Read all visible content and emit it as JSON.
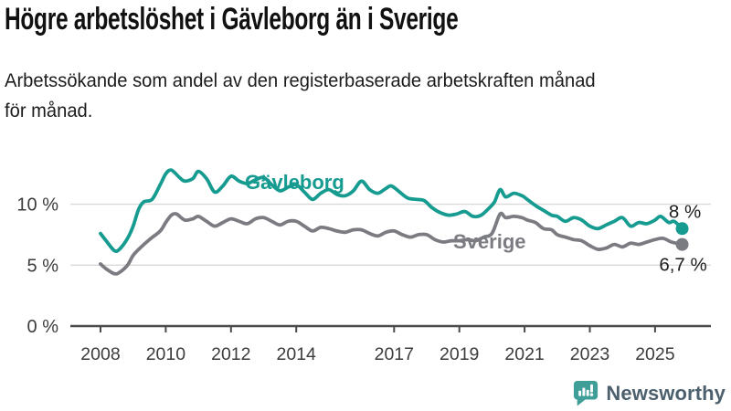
{
  "header": {
    "title": "Högre arbetslöshet i Gävleborg än i Sverige",
    "subtitle": "Arbetssökande som andel av den registerbaserade arbetskraften månad för månad.",
    "subtitle_lines": {
      "line1": "Arbetssökande som andel av den registerbaserade arbetskraften månad",
      "line2": "för månad."
    }
  },
  "chart_data": {
    "type": "line",
    "title": "",
    "xlabel": "",
    "ylabel": "",
    "x_unit": "decimal-year (monthly observations)",
    "y_unit": "percent of registered labour force",
    "xlim": [
      2007.9,
      2026.3
    ],
    "ylim": [
      0,
      13.8
    ],
    "grid": "horizontal",
    "legend_position": "inline-labels-on-lines",
    "yticks": [
      {
        "value": 0,
        "label": "0 %"
      },
      {
        "value": 5,
        "label": "5 %"
      },
      {
        "value": 10,
        "label": "10 %"
      }
    ],
    "xticks": [
      {
        "value": 2008,
        "label": "2008"
      },
      {
        "value": 2010,
        "label": "2010"
      },
      {
        "value": 2012,
        "label": "2012"
      },
      {
        "value": 2014,
        "label": "2014"
      },
      {
        "value": 2017,
        "label": "2017"
      },
      {
        "value": 2019,
        "label": "2019"
      },
      {
        "value": 2021,
        "label": "2021"
      },
      {
        "value": 2023,
        "label": "2023"
      },
      {
        "value": 2025,
        "label": "2025"
      }
    ],
    "series": [
      {
        "name": "Gävleborg",
        "color": "#169b91",
        "end_label": "8 %",
        "last_value": 8.0,
        "points": [
          [
            2008.0,
            7.6
          ],
          [
            2008.17,
            7.0
          ],
          [
            2008.42,
            6.2
          ],
          [
            2008.58,
            6.3
          ],
          [
            2008.83,
            7.2
          ],
          [
            2009.0,
            8.2
          ],
          [
            2009.17,
            9.6
          ],
          [
            2009.33,
            10.2
          ],
          [
            2009.58,
            10.4
          ],
          [
            2009.83,
            11.6
          ],
          [
            2010.0,
            12.5
          ],
          [
            2010.17,
            12.8
          ],
          [
            2010.42,
            12.2
          ],
          [
            2010.58,
            11.9
          ],
          [
            2010.83,
            12.1
          ],
          [
            2011.0,
            12.7
          ],
          [
            2011.25,
            12.1
          ],
          [
            2011.5,
            11.0
          ],
          [
            2011.75,
            11.5
          ],
          [
            2012.0,
            12.3
          ],
          [
            2012.25,
            11.9
          ],
          [
            2012.5,
            11.7
          ],
          [
            2012.75,
            12.0
          ],
          [
            2013.0,
            12.2
          ],
          [
            2013.25,
            11.6
          ],
          [
            2013.5,
            11.1
          ],
          [
            2013.75,
            11.4
          ],
          [
            2014.0,
            11.6
          ],
          [
            2014.25,
            11.0
          ],
          [
            2014.5,
            10.4
          ],
          [
            2014.75,
            10.9
          ],
          [
            2015.0,
            11.2
          ],
          [
            2015.25,
            10.8
          ],
          [
            2015.5,
            10.7
          ],
          [
            2015.75,
            11.1
          ],
          [
            2016.0,
            11.9
          ],
          [
            2016.25,
            11.2
          ],
          [
            2016.5,
            10.9
          ],
          [
            2016.75,
            11.3
          ],
          [
            2016.92,
            11.5
          ],
          [
            2017.17,
            11.0
          ],
          [
            2017.42,
            10.5
          ],
          [
            2017.67,
            10.4
          ],
          [
            2017.92,
            10.3
          ],
          [
            2018.17,
            9.7
          ],
          [
            2018.42,
            9.3
          ],
          [
            2018.67,
            9.1
          ],
          [
            2018.92,
            9.2
          ],
          [
            2019.17,
            9.4
          ],
          [
            2019.42,
            9.0
          ],
          [
            2019.67,
            9.1
          ],
          [
            2019.92,
            9.7
          ],
          [
            2020.08,
            10.2
          ],
          [
            2020.25,
            11.2
          ],
          [
            2020.42,
            10.6
          ],
          [
            2020.67,
            10.9
          ],
          [
            2020.92,
            10.7
          ],
          [
            2021.08,
            10.4
          ],
          [
            2021.33,
            9.9
          ],
          [
            2021.58,
            9.5
          ],
          [
            2021.83,
            9.1
          ],
          [
            2022.0,
            9.0
          ],
          [
            2022.25,
            8.6
          ],
          [
            2022.5,
            8.9
          ],
          [
            2022.75,
            8.7
          ],
          [
            2023.0,
            8.2
          ],
          [
            2023.25,
            8.0
          ],
          [
            2023.5,
            8.3
          ],
          [
            2023.75,
            8.6
          ],
          [
            2024.0,
            8.9
          ],
          [
            2024.25,
            8.2
          ],
          [
            2024.5,
            8.5
          ],
          [
            2024.75,
            8.4
          ],
          [
            2025.0,
            8.7
          ],
          [
            2025.17,
            9.0
          ],
          [
            2025.42,
            8.5
          ],
          [
            2025.58,
            8.6
          ],
          [
            2025.83,
            8.0
          ]
        ]
      },
      {
        "name": "Sverige",
        "color": "#7b7b82",
        "end_label": "6,7 %",
        "last_value": 6.7,
        "points": [
          [
            2008.0,
            5.1
          ],
          [
            2008.17,
            4.7
          ],
          [
            2008.42,
            4.3
          ],
          [
            2008.58,
            4.4
          ],
          [
            2008.83,
            5.0
          ],
          [
            2009.0,
            5.8
          ],
          [
            2009.25,
            6.5
          ],
          [
            2009.5,
            7.1
          ],
          [
            2009.83,
            7.8
          ],
          [
            2010.0,
            8.5
          ],
          [
            2010.17,
            9.1
          ],
          [
            2010.33,
            9.2
          ],
          [
            2010.58,
            8.7
          ],
          [
            2010.83,
            8.8
          ],
          [
            2011.0,
            9.0
          ],
          [
            2011.25,
            8.6
          ],
          [
            2011.5,
            8.2
          ],
          [
            2011.75,
            8.5
          ],
          [
            2012.0,
            8.8
          ],
          [
            2012.25,
            8.6
          ],
          [
            2012.5,
            8.4
          ],
          [
            2012.75,
            8.8
          ],
          [
            2013.0,
            8.9
          ],
          [
            2013.25,
            8.6
          ],
          [
            2013.5,
            8.3
          ],
          [
            2013.75,
            8.6
          ],
          [
            2014.0,
            8.6
          ],
          [
            2014.25,
            8.2
          ],
          [
            2014.5,
            7.8
          ],
          [
            2014.75,
            8.1
          ],
          [
            2015.0,
            8.0
          ],
          [
            2015.25,
            7.8
          ],
          [
            2015.5,
            7.7
          ],
          [
            2015.75,
            7.9
          ],
          [
            2016.0,
            7.9
          ],
          [
            2016.25,
            7.6
          ],
          [
            2016.5,
            7.4
          ],
          [
            2016.75,
            7.7
          ],
          [
            2017.0,
            7.8
          ],
          [
            2017.25,
            7.5
          ],
          [
            2017.5,
            7.3
          ],
          [
            2017.75,
            7.5
          ],
          [
            2018.0,
            7.5
          ],
          [
            2018.25,
            7.1
          ],
          [
            2018.5,
            6.9
          ],
          [
            2018.75,
            7.0
          ],
          [
            2019.0,
            7.0
          ],
          [
            2019.25,
            7.1
          ],
          [
            2019.5,
            7.0
          ],
          [
            2019.75,
            7.3
          ],
          [
            2020.0,
            7.6
          ],
          [
            2020.25,
            9.2
          ],
          [
            2020.42,
            8.9
          ],
          [
            2020.67,
            9.0
          ],
          [
            2020.92,
            8.9
          ],
          [
            2021.08,
            8.7
          ],
          [
            2021.33,
            8.5
          ],
          [
            2021.58,
            8.0
          ],
          [
            2021.83,
            7.9
          ],
          [
            2022.0,
            7.5
          ],
          [
            2022.25,
            7.3
          ],
          [
            2022.5,
            7.1
          ],
          [
            2022.75,
            7.0
          ],
          [
            2023.0,
            6.6
          ],
          [
            2023.25,
            6.3
          ],
          [
            2023.5,
            6.4
          ],
          [
            2023.75,
            6.7
          ],
          [
            2024.0,
            6.5
          ],
          [
            2024.25,
            6.8
          ],
          [
            2024.5,
            6.7
          ],
          [
            2024.75,
            6.9
          ],
          [
            2025.0,
            7.1
          ],
          [
            2025.25,
            7.2
          ],
          [
            2025.5,
            6.9
          ],
          [
            2025.83,
            6.7
          ]
        ]
      }
    ],
    "colors": {
      "grid": "#d9d9d9",
      "axis": "#4a4a4a",
      "tick_label": "#3c3c3c",
      "end_label": "#1f1f1f"
    }
  },
  "footer": {
    "brand": "Newsworthy",
    "brand_color": "#4d606e",
    "icon": "newsworthy-speech-bubble-barchart-icon",
    "icon_color": "#3f9e98"
  }
}
